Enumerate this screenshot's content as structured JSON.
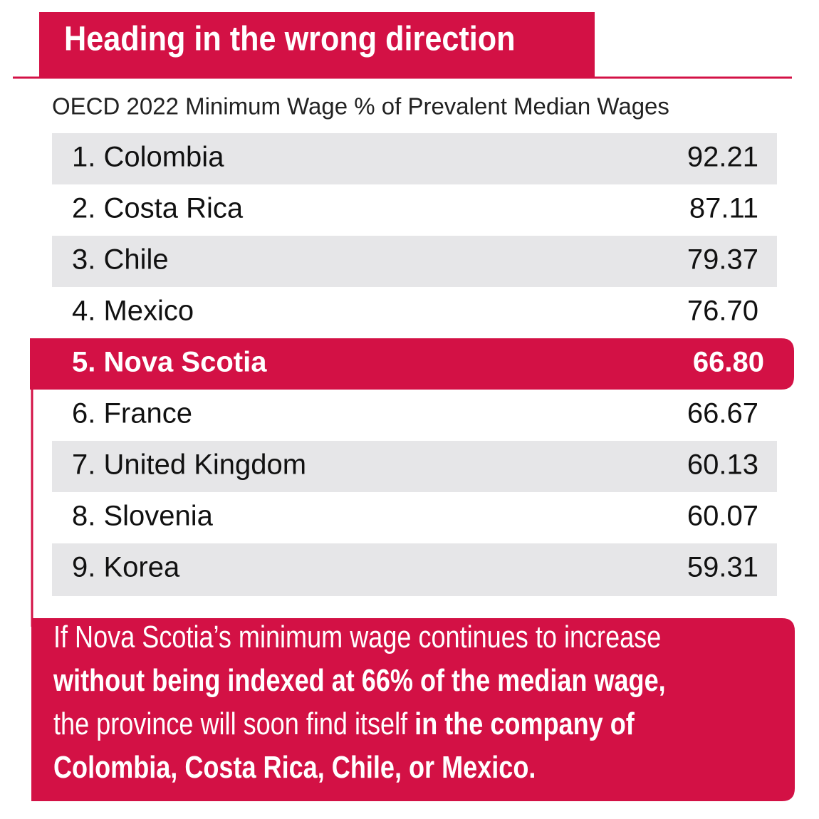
{
  "header": {
    "title": "Heading in the wrong direction"
  },
  "subtitle": "OECD 2022 Minimum Wage % of Prevalent Median Wages",
  "table": {
    "highlight_row": 4,
    "rows": [
      [
        "1. Colombia",
        "92.21"
      ],
      [
        "2. Costa Rica",
        "87.11"
      ],
      [
        "3. Chile",
        "79.37"
      ],
      [
        "4. Mexico",
        "76.70"
      ],
      [
        "5. Nova Scotia",
        "66.80"
      ],
      [
        "6. France",
        "66.67"
      ],
      [
        "7. United Kingdom",
        "60.13"
      ],
      [
        "8. Slovenia",
        "60.07"
      ],
      [
        "9. Korea",
        "59.31"
      ]
    ]
  },
  "footer": {
    "lines": [
      [
        {
          "text": "If Nova Scotia’s minimum wage continues to increase",
          "bold": false
        }
      ],
      [
        {
          "text": "without being indexed at 66% of the median wage,",
          "bold": true
        }
      ],
      [
        {
          "text": "the province will soon find itself ",
          "bold": false
        },
        {
          "text": "in the company of",
          "bold": true
        }
      ],
      [
        {
          "text": "Colombia, Costa Rica, Chile, or Mexico.",
          "bold": true
        }
      ]
    ]
  }
}
